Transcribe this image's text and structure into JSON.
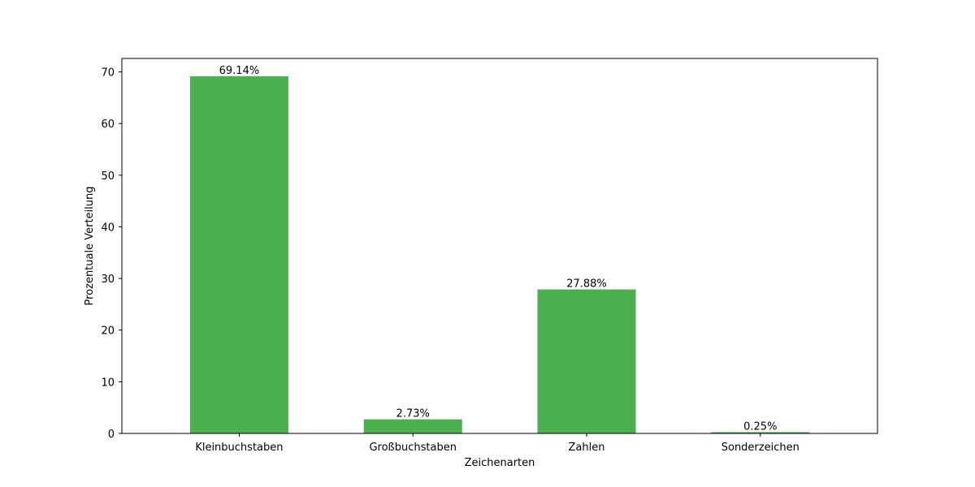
{
  "chart_data": {
    "type": "bar",
    "title": "",
    "xlabel": "Zeichenarten",
    "ylabel": "Prozentuale Verteilung",
    "categories": [
      "Kleinbuchstaben",
      "Großbuchstaben",
      "Zahlen",
      "Sonderzeichen"
    ],
    "values": [
      69.14,
      2.73,
      27.88,
      0.25
    ],
    "data_labels": [
      "69.14%",
      "2.73%",
      "27.88%",
      "0.25%"
    ],
    "ylim": [
      0,
      72.6
    ],
    "yticks": [
      0,
      10,
      20,
      30,
      40,
      50,
      60,
      70
    ],
    "grid": false,
    "legend": "none",
    "bar_color": "#4caf50"
  }
}
